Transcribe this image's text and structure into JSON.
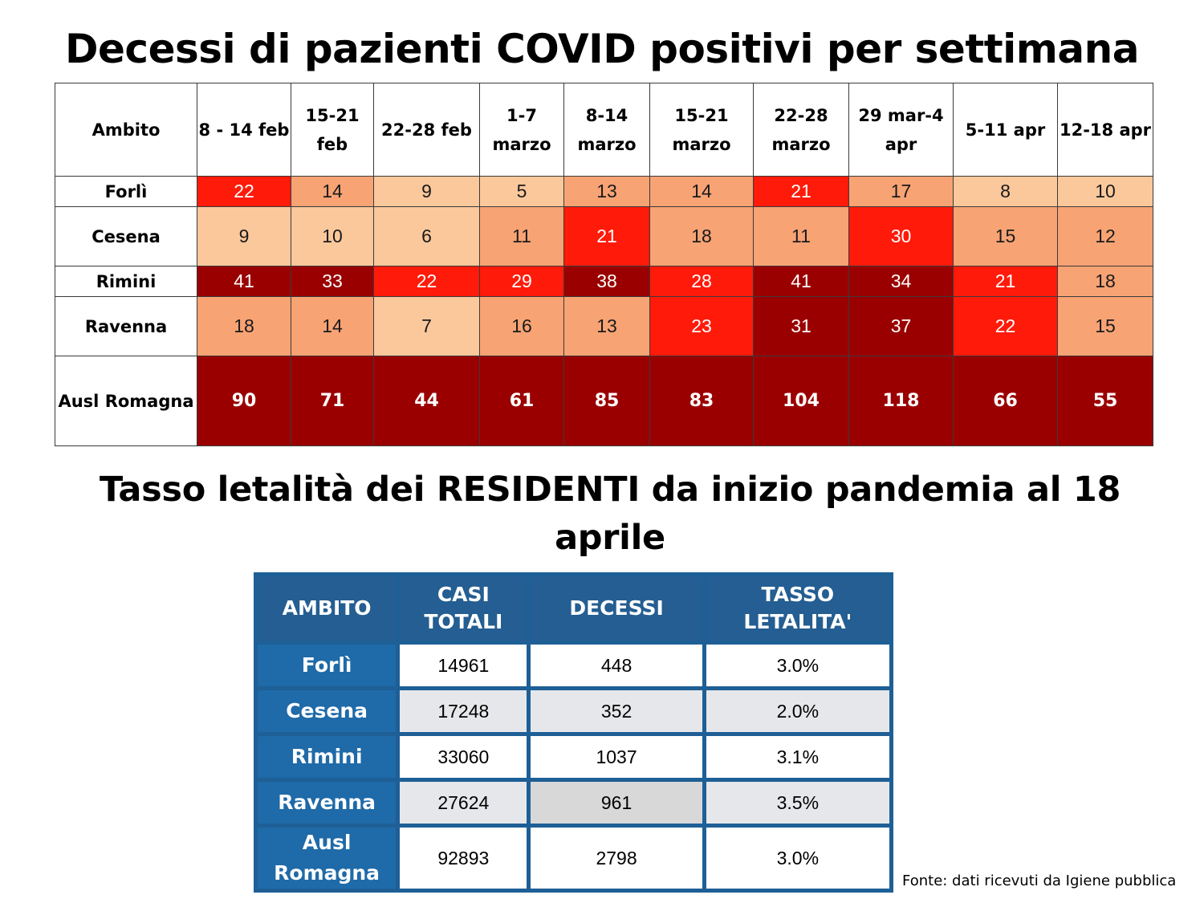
{
  "title1": "Decessi di pazienti COVID positivi per settimana",
  "title2": "Tasso letalità dei RESIDENTI da inizio pandemia al 18 aprile",
  "weekly_table": {
    "headers": [
      "Ambito",
      "8 - 14 feb",
      "15-21 feb",
      "22-28 feb",
      "1-7 marzo",
      "8-14 marzo",
      "15-21 marzo",
      "22-28 marzo",
      "29 mar-4 apr",
      "5-11 apr",
      "12-18 apr"
    ],
    "rows": [
      {
        "label": "Forlì",
        "values": [
          "22",
          "14",
          "9",
          "5",
          "13",
          "14",
          "21",
          "17",
          "8",
          "10"
        ]
      },
      {
        "label": "Cesena",
        "values": [
          "9",
          "10",
          "6",
          "11",
          "21",
          "18",
          "11",
          "30",
          "15",
          "12"
        ]
      },
      {
        "label": "Rimini",
        "values": [
          "41",
          "33",
          "22",
          "29",
          "38",
          "28",
          "41",
          "34",
          "21",
          "18"
        ]
      },
      {
        "label": "Ravenna",
        "values": [
          "18",
          "14",
          "7",
          "16",
          "13",
          "23",
          "31",
          "37",
          "22",
          "15"
        ]
      },
      {
        "label": "Ausl Romagna",
        "values": [
          "90",
          "71",
          "44",
          "61",
          "85",
          "83",
          "104",
          "118",
          "66",
          "55"
        ]
      }
    ],
    "colors": {
      "pale": "#fbc89c",
      "light": "#f8a374",
      "red": "#ff1a0a",
      "dark": "#9b0000"
    }
  },
  "lethality_table": {
    "headers": [
      "AMBITO",
      "CASI TOTALI",
      "DECESSI",
      "TASSO LETALITA'"
    ],
    "rows": [
      {
        "label": "Forlì",
        "casi": "14961",
        "decessi": "448",
        "tasso": "3.0%"
      },
      {
        "label": "Cesena",
        "casi": "17248",
        "decessi": "352",
        "tasso": "2.0%"
      },
      {
        "label": "Rimini",
        "casi": "33060",
        "decessi": "1037",
        "tasso": "3.1%"
      },
      {
        "label": "Ravenna",
        "casi": "27624",
        "decessi": "961",
        "tasso": "3.5%"
      },
      {
        "label": "Ausl Romagna",
        "casi": "92893",
        "decessi": "2798",
        "tasso": "3.0%"
      }
    ],
    "colors": {
      "frame": "#1e5f96",
      "label_bg": "#1f6aa8"
    }
  },
  "source": "Fonte: dati ricevuti da Igiene pubblica"
}
